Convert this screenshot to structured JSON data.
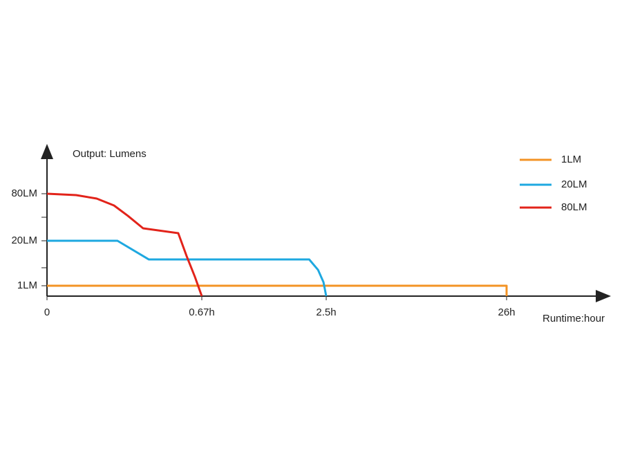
{
  "chart_data": {
    "type": "line",
    "title": "Output: Lumens",
    "x_label": "Runtime:hour",
    "xticks": [
      0,
      {
        "value": 0.67,
        "label": "0.67h"
      },
      {
        "value": 2.5,
        "label": "2.5h"
      },
      {
        "value": 26,
        "label": "26h"
      }
    ],
    "yticks": [
      {
        "value": 1,
        "label": "1LM"
      },
      {
        "value": 20,
        "label": "20LM"
      },
      {
        "value": 80,
        "label": "80LM"
      }
    ],
    "series": [
      {
        "name": "1LM",
        "color": "#f39325",
        "x": [
          0,
          26,
          26
        ],
        "values": [
          1,
          1,
          0
        ]
      },
      {
        "name": "20LM",
        "color": "#1ea8e0",
        "x": [
          0,
          0.305,
          0.441,
          2.25,
          2.38,
          2.46,
          2.5
        ],
        "values": [
          20,
          20,
          12.1,
          12.1,
          7.7,
          2.5,
          0
        ]
      },
      {
        "name": "80LM",
        "color": "#e2231a",
        "x": [
          0,
          0.126,
          0.215,
          0.29,
          0.35,
          0.416,
          0.568,
          0.604,
          0.64,
          0.67
        ],
        "values": [
          80,
          78.2,
          73.8,
          65,
          51.8,
          35.9,
          29.7,
          13.6,
          4.8,
          0
        ]
      }
    ]
  }
}
